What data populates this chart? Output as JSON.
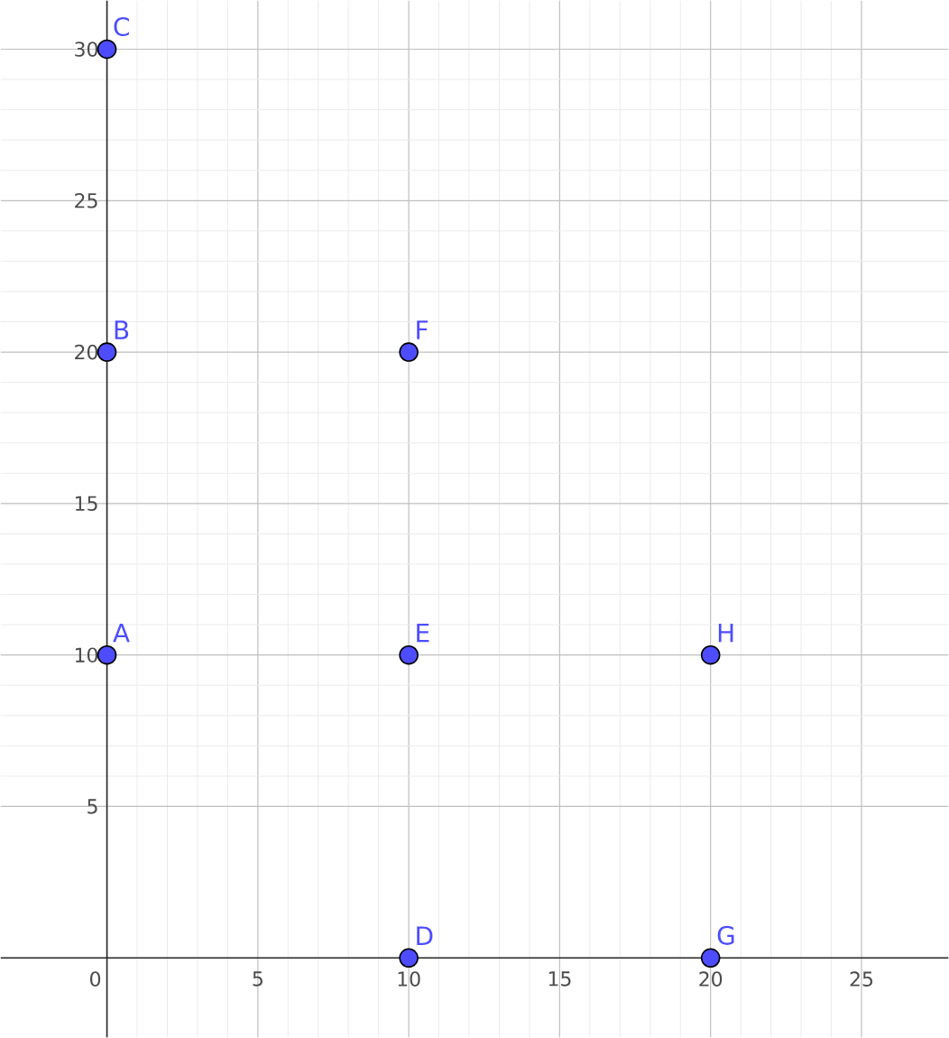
{
  "chart_data": {
    "type": "scatter",
    "x": [
      0,
      0,
      0,
      10,
      10,
      10,
      20,
      20
    ],
    "values": [
      10,
      20,
      30,
      0,
      10,
      20,
      0,
      10
    ],
    "color": "#4d4dff",
    "marker": "circle",
    "xlim": [
      -3.52,
      27.88
    ],
    "ylim": [
      -2.62,
      31.6
    ],
    "xticks": [
      0,
      5,
      10,
      15,
      20,
      25
    ],
    "yticks": [
      5,
      10,
      15,
      20,
      25,
      30
    ],
    "grid": true,
    "annotations": [
      {
        "text": "A",
        "x": 0,
        "y": 10
      },
      {
        "text": "B",
        "x": 0,
        "y": 20
      },
      {
        "text": "C",
        "x": 0,
        "y": 30
      },
      {
        "text": "D",
        "x": 10,
        "y": 0
      },
      {
        "text": "E",
        "x": 10,
        "y": 10
      },
      {
        "text": "F",
        "x": 10,
        "y": 20
      },
      {
        "text": "G",
        "x": 20,
        "y": 0
      },
      {
        "text": "H",
        "x": 20,
        "y": 10
      }
    ]
  }
}
